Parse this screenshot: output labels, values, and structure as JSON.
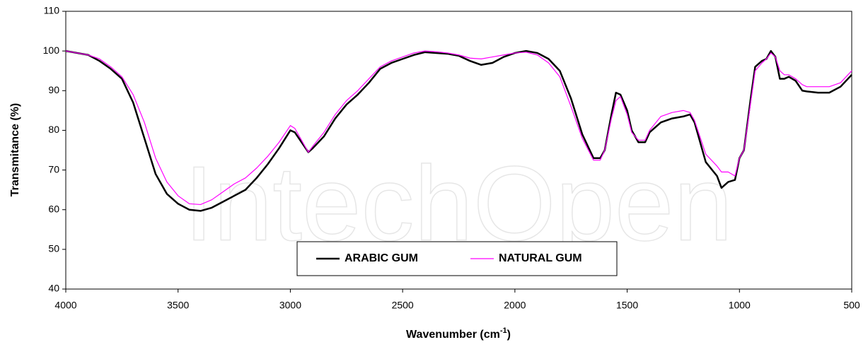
{
  "chart_data": {
    "type": "line",
    "watermark": "IntechOpen",
    "y_label": "Transmitance (%)",
    "x_label": {
      "text": "Wavenumber (cm",
      "sup": "-1",
      "tail": ")"
    },
    "xlim": [
      4000,
      500
    ],
    "xticks": [
      4000,
      3500,
      3000,
      2500,
      2000,
      1500,
      1000,
      500
    ],
    "ylim": [
      40,
      110
    ],
    "yticks": [
      40,
      50,
      60,
      70,
      80,
      90,
      100,
      110
    ],
    "legend": "bottom",
    "x": [
      4000,
      3950,
      3900,
      3850,
      3800,
      3750,
      3700,
      3650,
      3600,
      3550,
      3500,
      3450,
      3400,
      3350,
      3300,
      3250,
      3200,
      3150,
      3100,
      3050,
      3000,
      2980,
      2950,
      2920,
      2900,
      2850,
      2800,
      2750,
      2700,
      2650,
      2600,
      2550,
      2500,
      2450,
      2400,
      2350,
      2300,
      2250,
      2200,
      2150,
      2100,
      2050,
      2000,
      1950,
      1900,
      1850,
      1800,
      1750,
      1700,
      1650,
      1620,
      1600,
      1570,
      1550,
      1530,
      1500,
      1480,
      1450,
      1420,
      1400,
      1350,
      1300,
      1250,
      1220,
      1200,
      1150,
      1100,
      1080,
      1050,
      1020,
      1000,
      980,
      950,
      930,
      900,
      880,
      860,
      840,
      820,
      800,
      780,
      750,
      720,
      700,
      650,
      600,
      550,
      500
    ],
    "series": [
      {
        "name": "ARABIC GUM",
        "color": "#000000",
        "width": 2.5,
        "values": [
          100,
          99.5,
          99,
          97.5,
          95.5,
          93,
          87,
          78,
          69,
          64,
          61.5,
          60,
          59.7,
          60.5,
          62,
          63.5,
          65,
          68,
          71.5,
          75.5,
          80,
          79.5,
          77,
          74.5,
          75.5,
          78.5,
          83,
          86.5,
          89,
          92,
          95.5,
          97,
          98,
          99,
          99.7,
          99.5,
          99.3,
          98.8,
          97.5,
          96.5,
          97,
          98.5,
          99.5,
          100,
          99.5,
          98,
          95,
          88,
          79,
          73,
          73,
          75,
          84,
          89.5,
          89,
          85,
          80,
          77,
          77,
          79.5,
          82,
          83,
          83.5,
          84,
          82,
          72,
          68.5,
          65.5,
          67,
          67.5,
          73,
          75,
          88,
          96,
          97.5,
          98,
          100,
          98.5,
          93,
          93,
          93.5,
          92.5,
          90,
          89.8,
          89.5,
          89.5,
          91,
          94
        ]
      },
      {
        "name": "NATURAL GUM",
        "color": "#ff00ff",
        "width": 1.2,
        "values": [
          100,
          99.5,
          99,
          98,
          96,
          93.5,
          89,
          82,
          73,
          67,
          63.5,
          61.5,
          61.3,
          62.5,
          64.5,
          66.5,
          68,
          70.5,
          73.5,
          77,
          81.2,
          80.5,
          77.5,
          74.5,
          76,
          79.5,
          84,
          87.5,
          90,
          93,
          96,
          97.5,
          98.5,
          99.5,
          100,
          99.8,
          99.5,
          99,
          98.2,
          98,
          98.5,
          99,
          99.5,
          99.7,
          99,
          97,
          93.5,
          86,
          78,
          72.5,
          72.5,
          75,
          83,
          87.5,
          88.5,
          84,
          79.5,
          77.5,
          77.5,
          80,
          83.5,
          84.5,
          85,
          84.5,
          82.5,
          74,
          71,
          69.5,
          69.5,
          68.5,
          73,
          75,
          87,
          95,
          97,
          98,
          99.5,
          98.5,
          95,
          94,
          94,
          93,
          91.5,
          91,
          91,
          91,
          92,
          95
        ]
      }
    ]
  }
}
